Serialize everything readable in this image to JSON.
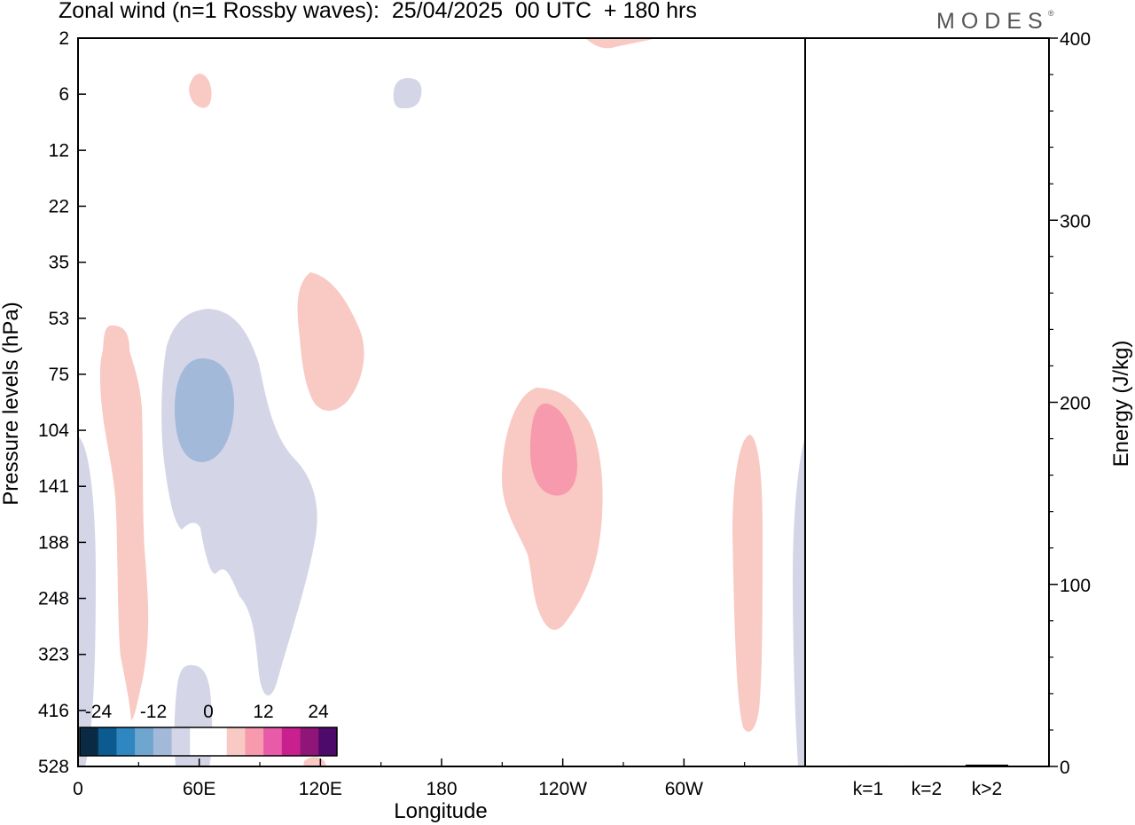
{
  "title": "Zonal wind (n=1 Rossby waves):  25/04/2025  00 UTC  + 180 hrs",
  "brand": "MODES",
  "brand_mark": "®",
  "chart_data": {
    "type": "heatmap",
    "xlabel": "Longitude",
    "ylabel": "Pressure levels (hPa)",
    "y2label": "Energy (J/kg)",
    "x_ticks": [
      "0",
      "60E",
      "120E",
      "180",
      "120W",
      "60W"
    ],
    "x_tick_values": [
      0,
      60,
      120,
      180,
      240,
      300
    ],
    "xlim": [
      0,
      360
    ],
    "y_ticks": [
      "2",
      "6",
      "12",
      "22",
      "35",
      "53",
      "75",
      "104",
      "141",
      "188",
      "248",
      "323",
      "416",
      "528"
    ],
    "y2_ticks": [
      "0",
      "100",
      "200",
      "300",
      "400"
    ],
    "y2lim": [
      0,
      400
    ],
    "energy_bars": {
      "categories": [
        "k=1",
        "k=2",
        "k>2"
      ],
      "values": [
        0.5,
        0.5,
        1
      ]
    },
    "colorbar": {
      "labels": [
        "-24",
        "-12",
        "0",
        "12",
        "24"
      ],
      "colors": [
        "#0a2a44",
        "#0b5a90",
        "#2f86c0",
        "#6fa6d0",
        "#a2b9d9",
        "#d4d6e8",
        "#ffffff",
        "#ffffff",
        "#f9c9c4",
        "#f79aae",
        "#e85ba8",
        "#c8208e",
        "#8f1578",
        "#4e0a6a"
      ]
    },
    "contour_colors": {
      "neg_weak": "#d4d6e8",
      "neg_mid": "#a2b9d9",
      "pos_weak": "#f9c9c4",
      "pos_mid": "#f79aae"
    }
  }
}
